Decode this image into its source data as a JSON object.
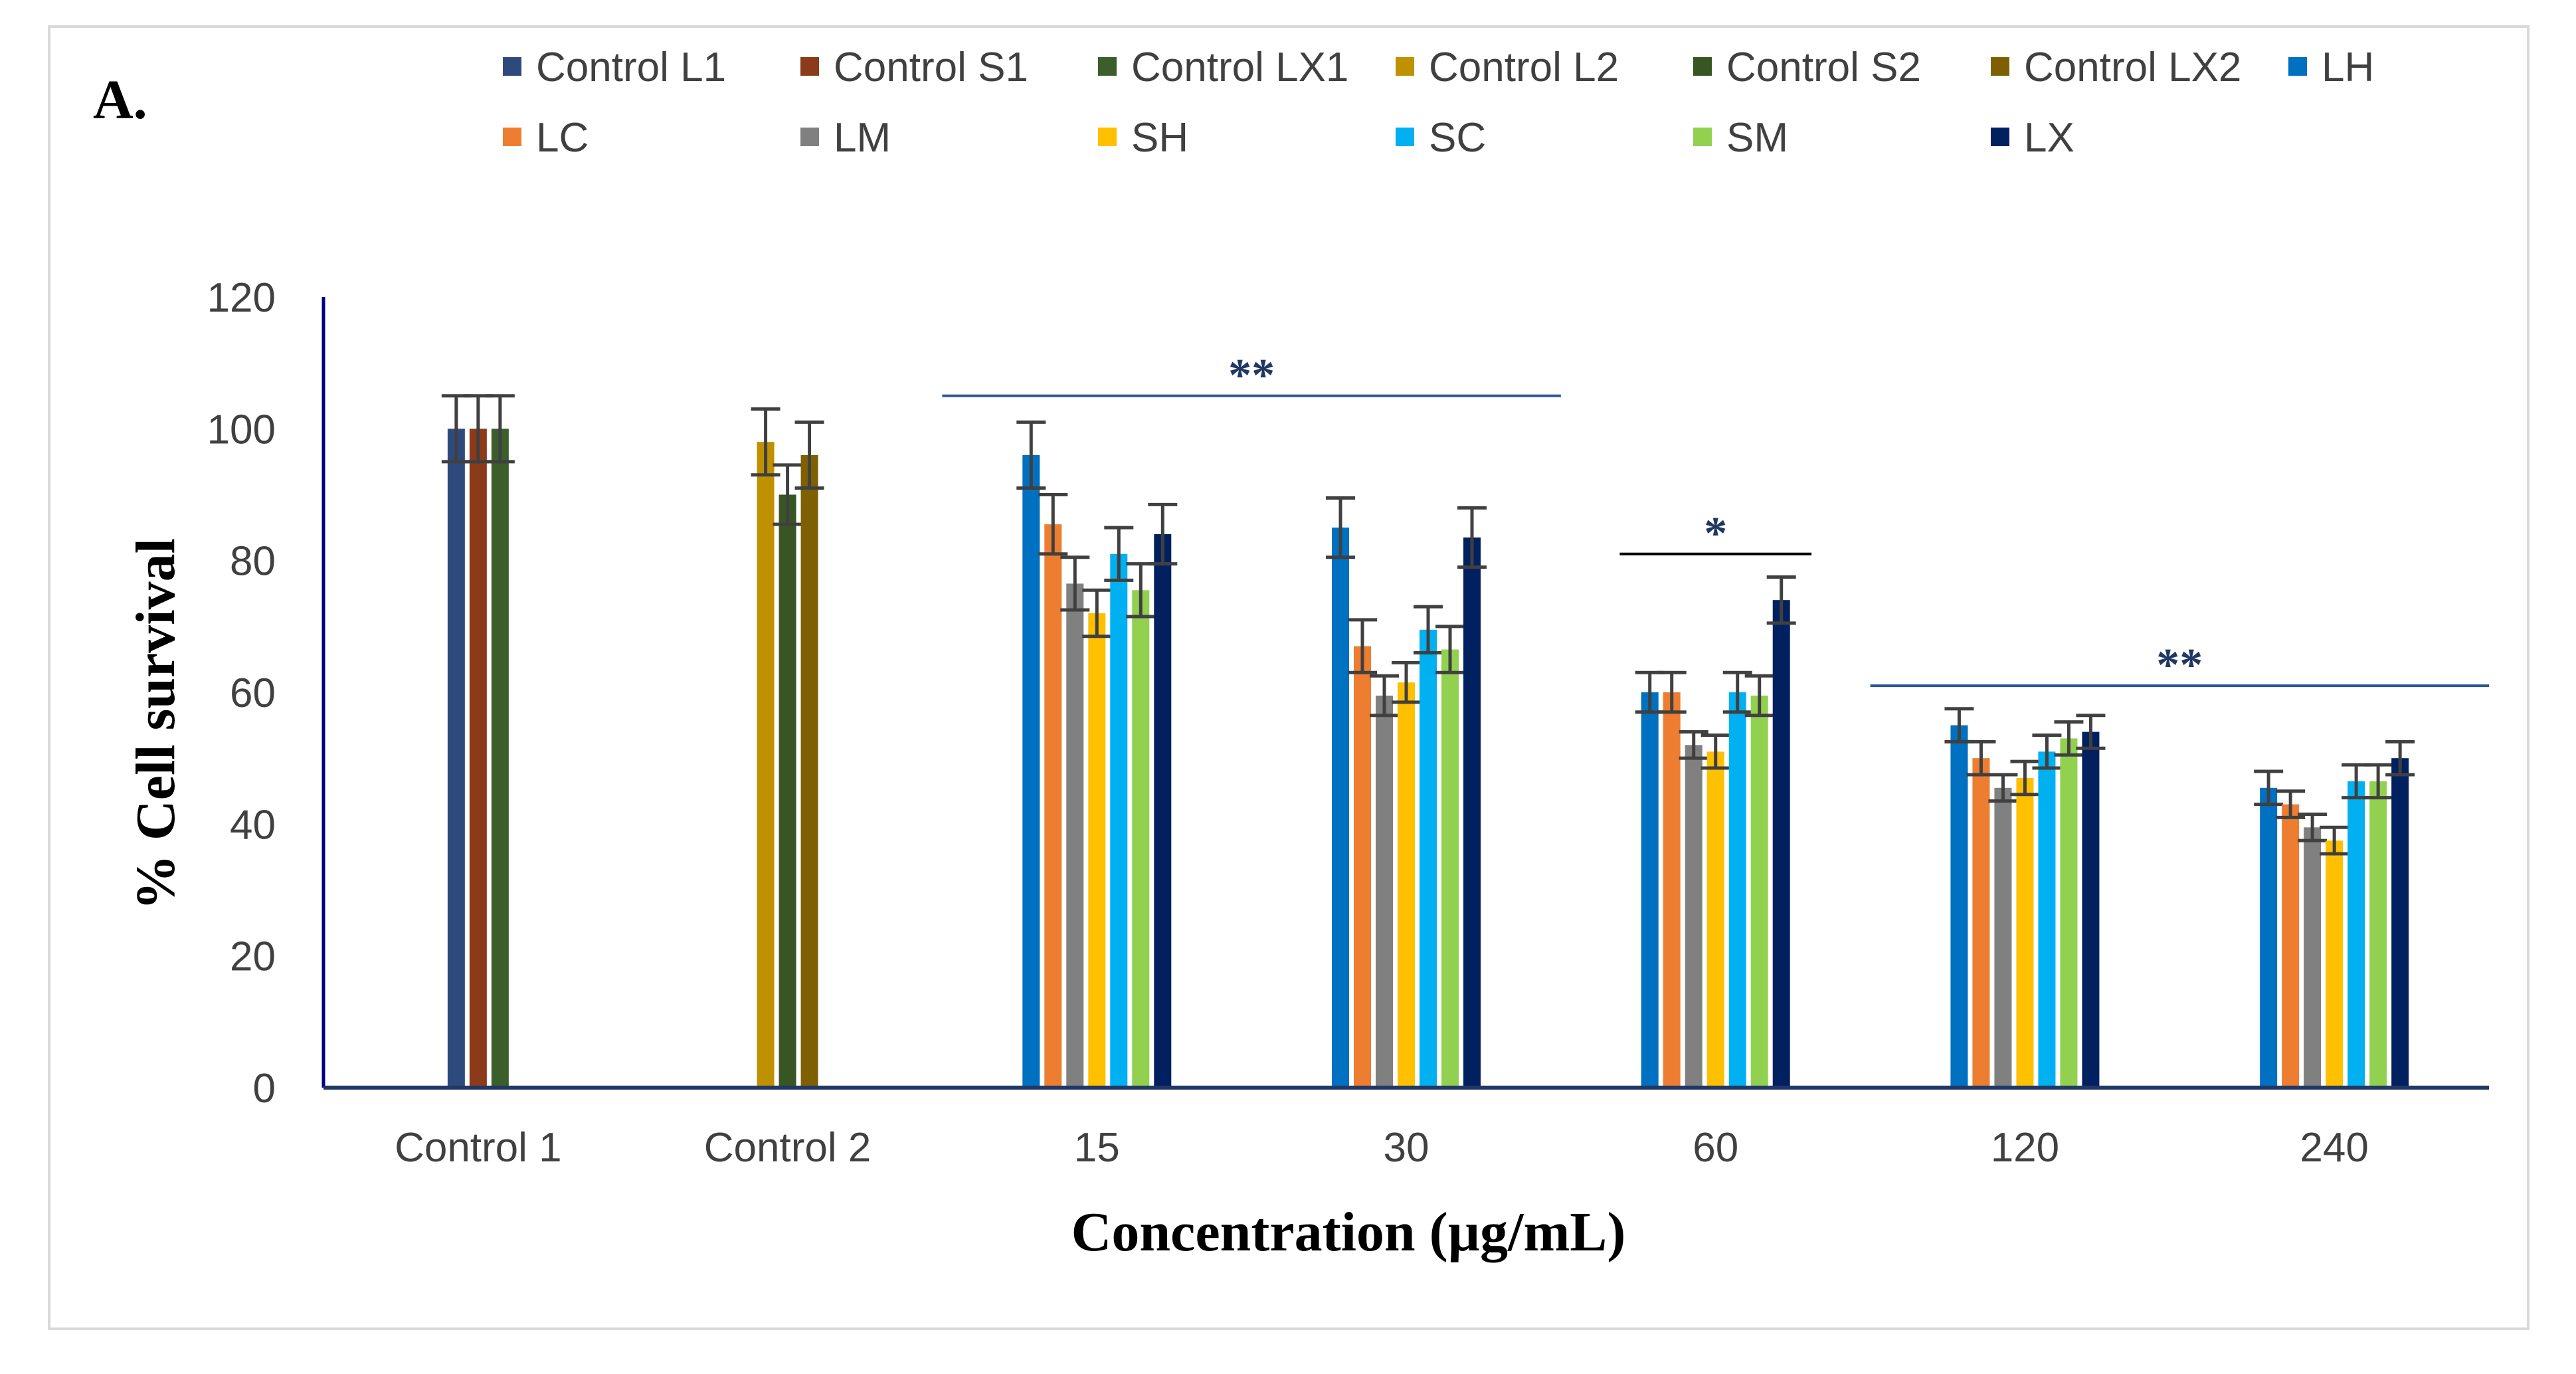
{
  "panel_label": "A.",
  "chart_data": {
    "type": "bar",
    "title": "",
    "xlabel": "Concentration (µg/mL)",
    "ylabel": "% Cell survival",
    "ylim": [
      0,
      120
    ],
    "yticks": [
      0,
      20,
      40,
      60,
      80,
      100,
      120
    ],
    "grid": false,
    "legend_position": "top",
    "categories": [
      "Control 1",
      "Control 2",
      "15",
      "30",
      "60",
      "120",
      "240"
    ],
    "series": [
      {
        "name": "Control L1",
        "color": "#2e4a7d",
        "values": [
          100,
          null,
          null,
          null,
          null,
          null,
          null
        ],
        "errors": [
          5,
          null,
          null,
          null,
          null,
          null,
          null
        ]
      },
      {
        "name": "Control S1",
        "color": "#8b3a1a",
        "values": [
          100,
          null,
          null,
          null,
          null,
          null,
          null
        ],
        "errors": [
          5,
          null,
          null,
          null,
          null,
          null,
          null
        ]
      },
      {
        "name": "Control LX1",
        "color": "#3b5e2b",
        "values": [
          100,
          null,
          null,
          null,
          null,
          null,
          null
        ],
        "errors": [
          5,
          null,
          null,
          null,
          null,
          null,
          null
        ]
      },
      {
        "name": "Control L2",
        "color": "#bf9000",
        "values": [
          null,
          98,
          null,
          null,
          null,
          null,
          null
        ],
        "errors": [
          null,
          5,
          null,
          null,
          null,
          null,
          null
        ]
      },
      {
        "name": "Control S2",
        "color": "#375623",
        "values": [
          null,
          90,
          null,
          null,
          null,
          null,
          null
        ],
        "errors": [
          null,
          4.5,
          null,
          null,
          null,
          null,
          null
        ]
      },
      {
        "name": "Control LX2",
        "color": "#7f6000",
        "values": [
          null,
          96,
          null,
          null,
          null,
          null,
          null
        ],
        "errors": [
          null,
          5,
          null,
          null,
          null,
          null,
          null
        ]
      },
      {
        "name": "LH",
        "color": "#0070c0",
        "values": [
          null,
          null,
          96,
          85,
          60,
          55,
          45.5
        ],
        "errors": [
          null,
          null,
          5,
          4.5,
          3,
          2.5,
          2.5
        ]
      },
      {
        "name": "LC",
        "color": "#ed7d31",
        "values": [
          null,
          null,
          85.5,
          67,
          60,
          50,
          43
        ],
        "errors": [
          null,
          null,
          4.5,
          4,
          3,
          2.5,
          2
        ]
      },
      {
        "name": "LM",
        "color": "#808080",
        "values": [
          null,
          null,
          76.5,
          59.5,
          52,
          45.5,
          39.5
        ],
        "errors": [
          null,
          null,
          4,
          3,
          2,
          2,
          2
        ]
      },
      {
        "name": "SH",
        "color": "#ffc000",
        "values": [
          null,
          null,
          72,
          61.5,
          51,
          47,
          37.5
        ],
        "errors": [
          null,
          null,
          3.5,
          3,
          2.5,
          2.5,
          2
        ]
      },
      {
        "name": "SC",
        "color": "#00b0f0",
        "values": [
          null,
          null,
          81,
          69.5,
          60,
          51,
          46.5
        ],
        "errors": [
          null,
          null,
          4,
          3.5,
          3,
          2.5,
          2.5
        ]
      },
      {
        "name": "SM",
        "color": "#92d050",
        "values": [
          null,
          null,
          75.5,
          66.5,
          59.5,
          53,
          46.5
        ],
        "errors": [
          null,
          null,
          4,
          3.5,
          3,
          2.5,
          2.5
        ]
      },
      {
        "name": "LX",
        "color": "#002060",
        "values": [
          null,
          null,
          84,
          83.5,
          74,
          54,
          50
        ],
        "errors": [
          null,
          null,
          4.5,
          4.5,
          3.5,
          2.5,
          2.5
        ]
      }
    ],
    "significance": [
      {
        "label": "**",
        "from_category": "15",
        "to_category": "30",
        "y": 105,
        "color": "#2f5597"
      },
      {
        "label": "*",
        "from_category": "60",
        "to_category": "60",
        "y": 81,
        "color": "#000000"
      },
      {
        "label": "**",
        "from_category": "120",
        "to_category": "240",
        "y": 61,
        "color": "#2f5597"
      }
    ]
  }
}
